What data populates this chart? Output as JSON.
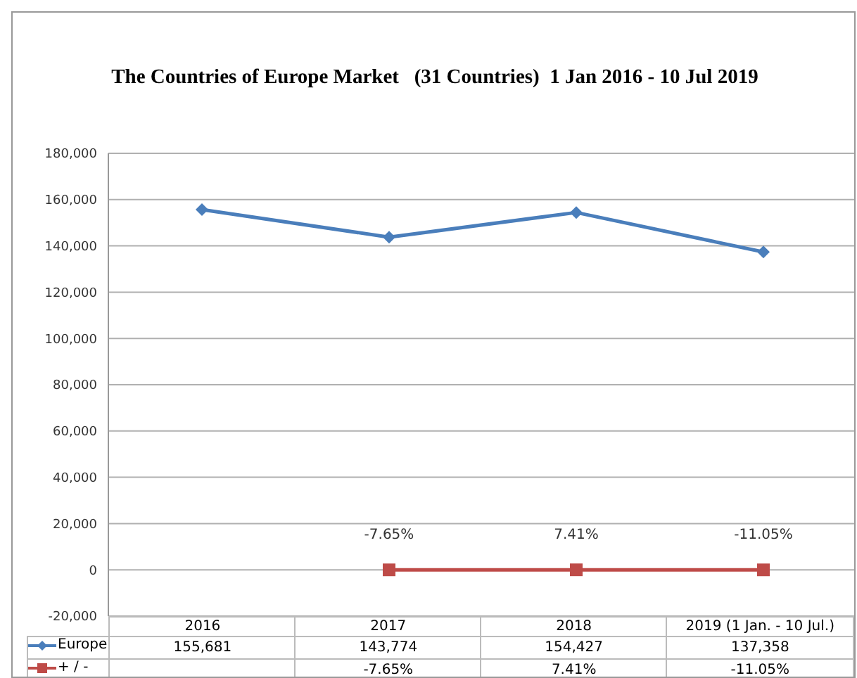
{
  "chart_data": {
    "type": "line",
    "title": "The Countries of Europe Market   (31 Countries)  1 Jan 2016 - 10 Jul 2019",
    "categories": [
      "2016",
      "2017",
      "2018",
      "2019 (1 Jan. - 10 Jul.)"
    ],
    "series": [
      {
        "name": "Europe",
        "color": "#4a7ebb",
        "marker": "diamond",
        "values": [
          155681,
          143774,
          154427,
          137358
        ],
        "value_labels": [
          "155,681",
          "143,774",
          "154,427",
          "137,358"
        ]
      },
      {
        "name": "+ / -",
        "color": "#be4b48",
        "marker": "square",
        "values": [
          null,
          -7.65,
          7.41,
          -11.05
        ],
        "value_labels": [
          null,
          "-7.65%",
          "7.41%",
          "-11.05%"
        ]
      }
    ],
    "annotations": [
      "-7.65%",
      "7.41%",
      "-11.05%"
    ],
    "ylim": [
      -20000,
      180000
    ],
    "yticks": [
      {
        "value": -20000,
        "label": "-20,000"
      },
      {
        "value": 0,
        "label": "0"
      },
      {
        "value": 20000,
        "label": "20,000"
      },
      {
        "value": 40000,
        "label": "40,000"
      },
      {
        "value": 60000,
        "label": "60,000"
      },
      {
        "value": 80000,
        "label": "80,000"
      },
      {
        "value": 100000,
        "label": "100,000"
      },
      {
        "value": 120000,
        "label": "120,000"
      },
      {
        "value": 140000,
        "label": "140,000"
      },
      {
        "value": 160000,
        "label": "160,000"
      },
      {
        "value": 180000,
        "label": "180,000"
      }
    ],
    "grid": "y",
    "legend": "bottom"
  }
}
